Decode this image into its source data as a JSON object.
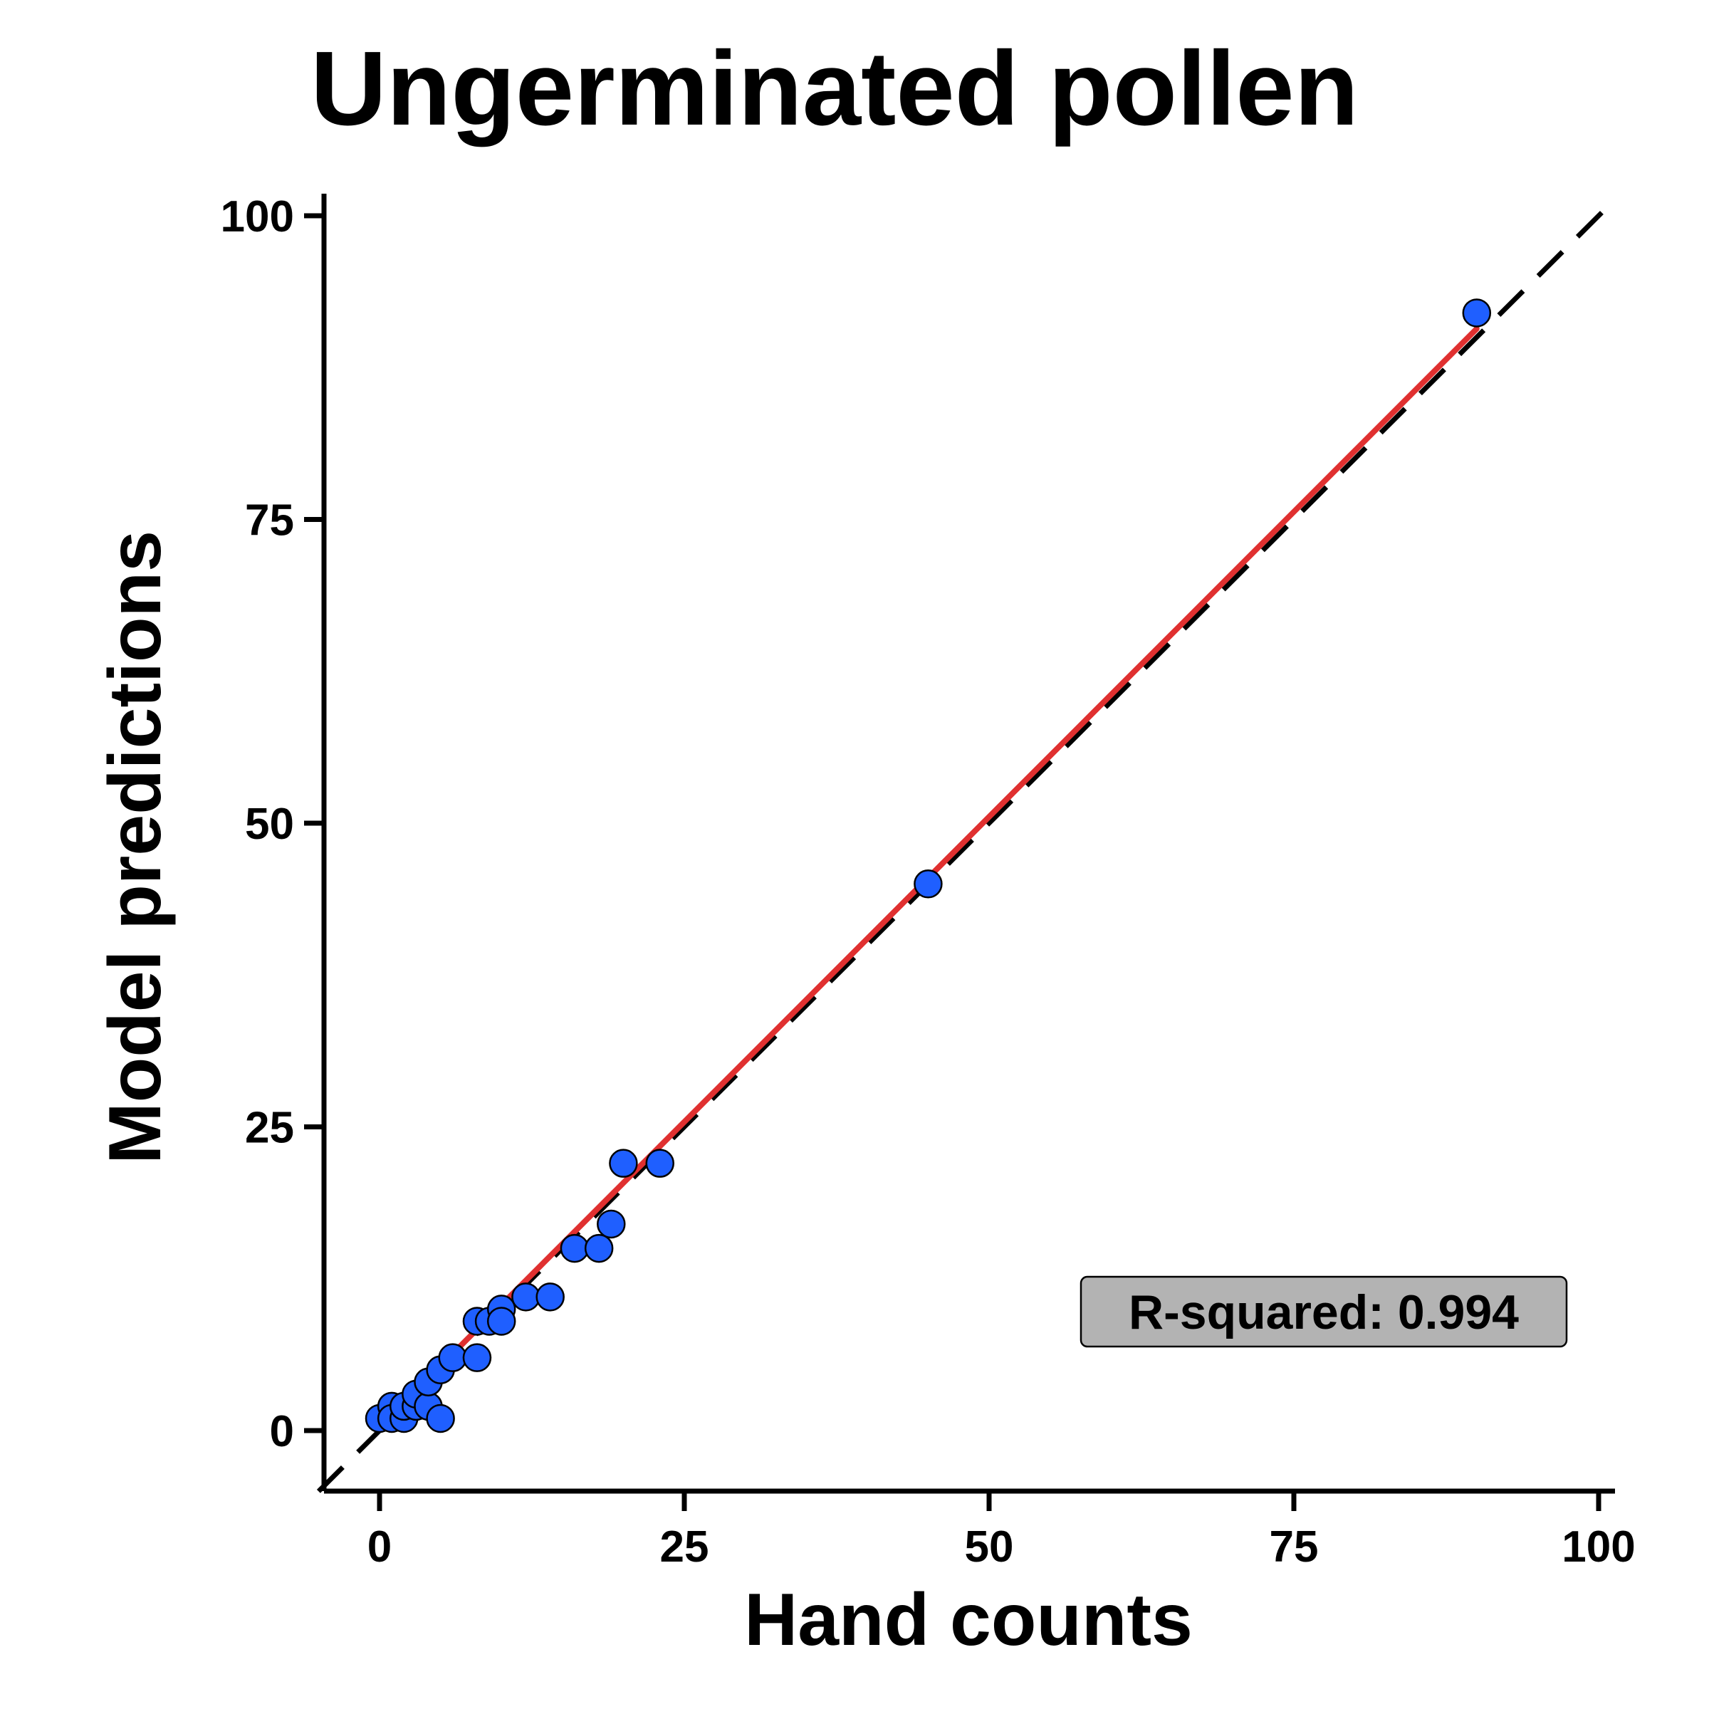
{
  "chart_data": {
    "type": "scatter",
    "title": "Ungerminated pollen",
    "xlabel": "Hand counts",
    "ylabel": "Model predictions",
    "xlim": [
      -5,
      101
    ],
    "ylim": [
      -5,
      101
    ],
    "x_ticks": [
      0,
      25,
      50,
      75,
      100
    ],
    "y_ticks": [
      0,
      25,
      50,
      75,
      100
    ],
    "x_tick_labels": [
      "0",
      "25",
      "50",
      "75",
      "100"
    ],
    "y_tick_labels": [
      "0",
      "25",
      "50",
      "75",
      "100"
    ],
    "grid": false,
    "points": [
      {
        "x": 0,
        "y": 1
      },
      {
        "x": 1,
        "y": 2
      },
      {
        "x": 1,
        "y": 1
      },
      {
        "x": 2,
        "y": 1
      },
      {
        "x": 2,
        "y": 2
      },
      {
        "x": 3,
        "y": 2
      },
      {
        "x": 3,
        "y": 3
      },
      {
        "x": 4,
        "y": 2
      },
      {
        "x": 4,
        "y": 4
      },
      {
        "x": 5,
        "y": 5
      },
      {
        "x": 5,
        "y": 1
      },
      {
        "x": 6,
        "y": 6
      },
      {
        "x": 8,
        "y": 6
      },
      {
        "x": 8,
        "y": 9
      },
      {
        "x": 9,
        "y": 9
      },
      {
        "x": 10,
        "y": 10
      },
      {
        "x": 10,
        "y": 9
      },
      {
        "x": 12,
        "y": 11
      },
      {
        "x": 14,
        "y": 11
      },
      {
        "x": 16,
        "y": 15
      },
      {
        "x": 18,
        "y": 15
      },
      {
        "x": 19,
        "y": 17
      },
      {
        "x": 20,
        "y": 22
      },
      {
        "x": 23,
        "y": 22
      },
      {
        "x": 45,
        "y": 45
      },
      {
        "x": 90,
        "y": 92
      }
    ],
    "fit_line": {
      "x": [
        0,
        90
      ],
      "y": [
        0.3,
        90.7
      ],
      "color": "#e03030"
    },
    "identity_line": {
      "x": [
        -5,
        101
      ],
      "y": [
        -5,
        101
      ],
      "style": "dashed",
      "color": "#000000"
    },
    "point_color": "#1f5fff",
    "annotation": {
      "text": "R-squared: 0.994",
      "placement": "bottom-right",
      "background": "#b3b3b3"
    }
  }
}
